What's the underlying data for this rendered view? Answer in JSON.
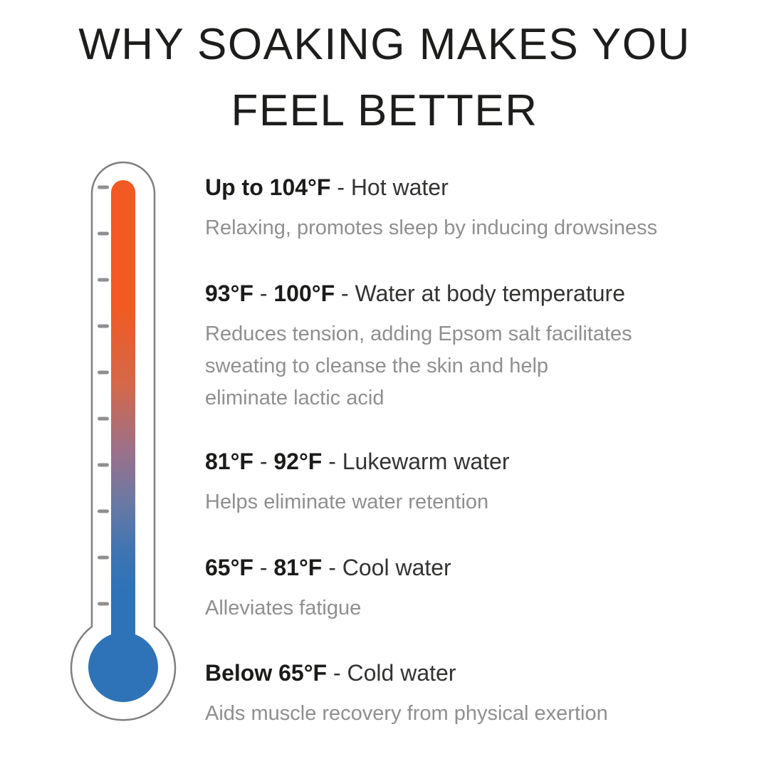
{
  "title": "WHY SOAKING MAKES YOU\nFEEL BETTER",
  "colors": {
    "hot_orange": "#F15A22",
    "cold_blue": "#2E73B8",
    "outline_gray": "#7f7f7f",
    "tick_gray": "#8f8f8f",
    "heading_dark": "#1b1b1a",
    "description_gray": "#8f8f8f"
  },
  "thermometer": {
    "icon": "thermometer-gradient-icon",
    "tick_count": 10,
    "top_color_meaning": "hot",
    "bottom_color_meaning": "cold"
  },
  "sections": [
    {
      "range_bold_a": "Up to 104°F",
      "range_sep": "",
      "range_bold_b": "",
      "label": " - Hot water",
      "description": "Relaxing, promotes sleep by inducing drowsiness"
    },
    {
      "range_bold_a": "93°F",
      "range_sep": " - ",
      "range_bold_b": "100°F",
      "label": " - Water at body temperature",
      "description": "Reduces tension, adding Epsom salt facilitates\nsweating to cleanse the skin and help\neliminate lactic acid"
    },
    {
      "range_bold_a": "81°F",
      "range_sep": " - ",
      "range_bold_b": "92°F",
      "label": " - Lukewarm water",
      "description": "Helps eliminate water retention"
    },
    {
      "range_bold_a": "65°F",
      "range_sep": " - ",
      "range_bold_b": "81°F",
      "label": " - Cool water",
      "description": "Alleviates fatigue"
    },
    {
      "range_bold_a": "Below 65°F",
      "range_sep": "",
      "range_bold_b": "",
      "label": " - Cold water",
      "description": "Aids muscle recovery from physical exertion"
    }
  ]
}
